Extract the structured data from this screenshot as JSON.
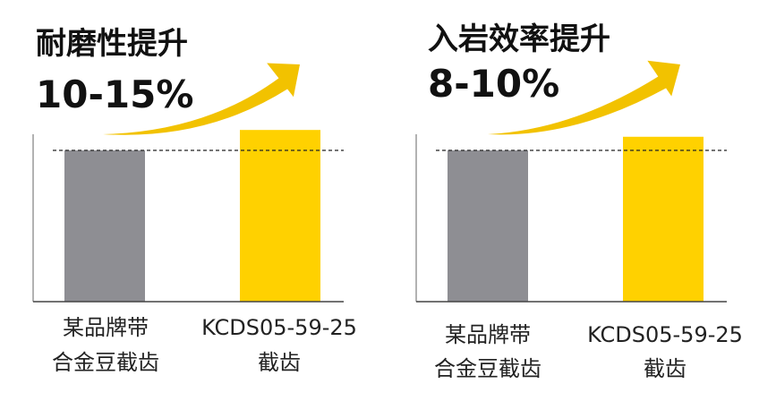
{
  "colors": {
    "gray": "#8e8e93",
    "yellow": "#ffd100",
    "arrow": "#f2c200",
    "text": "#111111"
  },
  "chart_data": [
    {
      "type": "bar",
      "title": "耐磨性提升",
      "subtitle": "10-15%",
      "categories": [
        {
          "line1": "某品牌带",
          "line2": "合金豆截齿"
        },
        {
          "line1": "KCDS05-59-25",
          "line2": "截齿"
        }
      ],
      "values": [
        100,
        113.5
      ],
      "bar_colors": [
        "#8e8e93",
        "#ffd100"
      ],
      "reference_line": 100,
      "ylim": [
        0,
        120
      ],
      "grid": false,
      "annotation": "arrow"
    },
    {
      "type": "bar",
      "title": "入岩效率提升",
      "subtitle": "8-10%",
      "categories": [
        {
          "line1": "某品牌带",
          "line2": "合金豆截齿"
        },
        {
          "line1": "KCDS05-59-25",
          "line2": "截齿"
        }
      ],
      "values": [
        100,
        109
      ],
      "bar_colors": [
        "#8e8e93",
        "#ffd100"
      ],
      "reference_line": 100,
      "ylim": [
        0,
        120
      ],
      "grid": false,
      "annotation": "arrow"
    }
  ]
}
